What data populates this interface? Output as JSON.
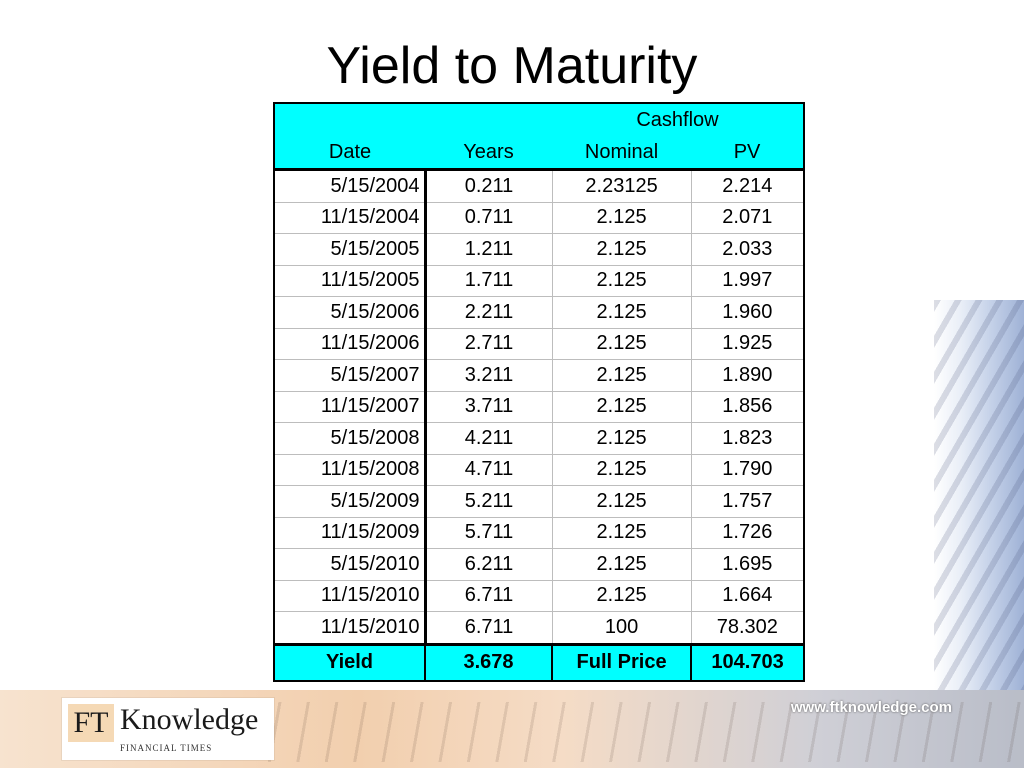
{
  "title": "Yield to Maturity",
  "table": {
    "header_group": "Cashflow",
    "columns": [
      "Date",
      "Years",
      "Nominal",
      "PV"
    ],
    "rows": [
      {
        "date": "5/15/2004",
        "years": "0.211",
        "nominal": "2.23125",
        "pv": "2.214"
      },
      {
        "date": "11/15/2004",
        "years": "0.711",
        "nominal": "2.125",
        "pv": "2.071"
      },
      {
        "date": "5/15/2005",
        "years": "1.211",
        "nominal": "2.125",
        "pv": "2.033"
      },
      {
        "date": "11/15/2005",
        "years": "1.711",
        "nominal": "2.125",
        "pv": "1.997"
      },
      {
        "date": "5/15/2006",
        "years": "2.211",
        "nominal": "2.125",
        "pv": "1.960"
      },
      {
        "date": "11/15/2006",
        "years": "2.711",
        "nominal": "2.125",
        "pv": "1.925"
      },
      {
        "date": "5/15/2007",
        "years": "3.211",
        "nominal": "2.125",
        "pv": "1.890"
      },
      {
        "date": "11/15/2007",
        "years": "3.711",
        "nominal": "2.125",
        "pv": "1.856"
      },
      {
        "date": "5/15/2008",
        "years": "4.211",
        "nominal": "2.125",
        "pv": "1.823"
      },
      {
        "date": "11/15/2008",
        "years": "4.711",
        "nominal": "2.125",
        "pv": "1.790"
      },
      {
        "date": "5/15/2009",
        "years": "5.211",
        "nominal": "2.125",
        "pv": "1.757"
      },
      {
        "date": "11/15/2009",
        "years": "5.711",
        "nominal": "2.125",
        "pv": "1.726"
      },
      {
        "date": "5/15/2010",
        "years": "6.211",
        "nominal": "2.125",
        "pv": "1.695"
      },
      {
        "date": "11/15/2010",
        "years": "6.711",
        "nominal": "2.125",
        "pv": "1.664"
      },
      {
        "date": "11/15/2010",
        "years": "6.711",
        "nominal": "100",
        "pv": "78.302"
      }
    ],
    "footer": {
      "label": "Yield",
      "yield_value": "3.678",
      "price_label": "Full Price",
      "price_value": "104.703"
    }
  },
  "branding": {
    "logo_ft": "FT",
    "logo_name": "Knowledge",
    "logo_sub": "FINANCIAL TIMES",
    "website": "www.ftknowledge.com"
  },
  "colors": {
    "header_bg": "#00ffff",
    "border": "#000000"
  }
}
